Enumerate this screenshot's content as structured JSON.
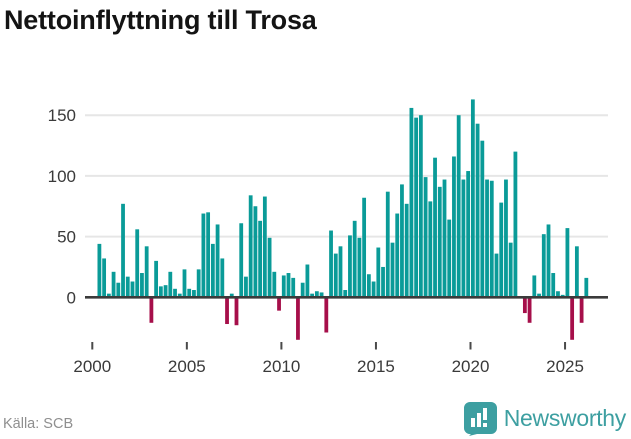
{
  "title": "Nettoinflyttning till Trosa",
  "footer": {
    "source": "Källa: SCB",
    "brand": "Newsworthy"
  },
  "colors": {
    "bar_positive": "#0a9b98",
    "bar_negative": "#a60f4a",
    "grid": "#e6e6e6",
    "zero_line": "#3b3b3b",
    "tick_mark": "#4a4a4a",
    "tick_text": "#3a3a3a",
    "title_text": "#141414",
    "source_text": "#8f8f8f",
    "brand_teal": "#3d9fa1"
  },
  "icons": {
    "brand_logo": "newsworthy-bar-chart-speech-bubble"
  },
  "chart_data": {
    "type": "bar",
    "title": "Nettoinflyttning till Trosa",
    "frequency": "quarterly",
    "start_period": "2000-Q1",
    "values": [
      1,
      44,
      32,
      3,
      21,
      12,
      77,
      17,
      13,
      56,
      20,
      42,
      -21,
      30,
      9,
      10,
      21,
      7,
      3,
      23,
      7,
      6,
      23,
      69,
      70,
      44,
      60,
      32,
      -22,
      3,
      -23,
      61,
      17,
      84,
      75,
      63,
      83,
      49,
      21,
      -11,
      18,
      20,
      16,
      -35,
      12,
      27,
      3,
      5,
      4,
      -29,
      55,
      36,
      42,
      6,
      51,
      63,
      49,
      82,
      19,
      13,
      41,
      25,
      87,
      45,
      69,
      93,
      77,
      156,
      148,
      150,
      99,
      79,
      115,
      91,
      97,
      64,
      116,
      150,
      97,
      104,
      163,
      143,
      129,
      97,
      96,
      36,
      78,
      97,
      45,
      120,
      1,
      -13,
      -21,
      18,
      3,
      52,
      60,
      20,
      5,
      2,
      57,
      -35,
      42,
      -21,
      16
    ],
    "x_tick_labels": [
      "2000",
      "2005",
      "2010",
      "2015",
      "2020",
      "2025"
    ],
    "y_tick_labels": [
      "0",
      "50",
      "100",
      "150"
    ],
    "y_tick_values": [
      0,
      50,
      100,
      150
    ],
    "grid_values": [
      50,
      100,
      150
    ],
    "ylim": [
      -40,
      170
    ],
    "grid": "horizontal",
    "legend": "none"
  }
}
